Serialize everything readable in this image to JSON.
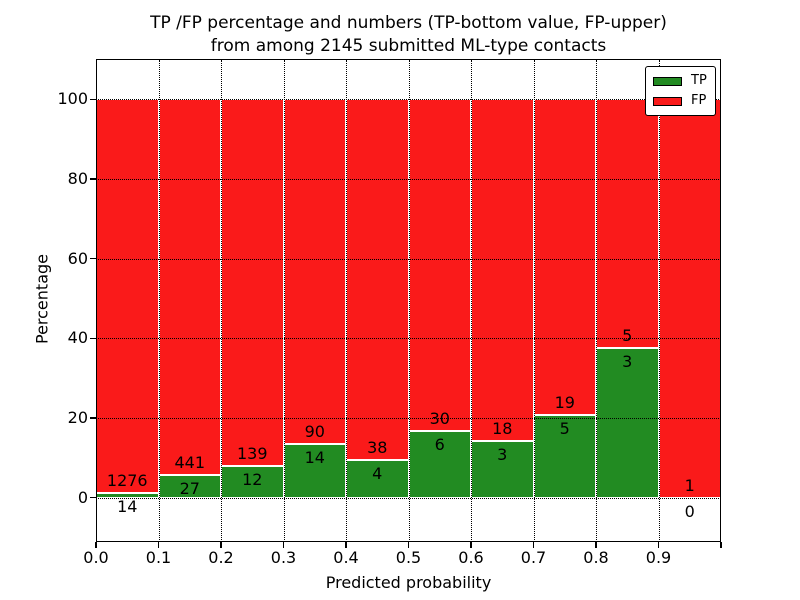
{
  "chart_data": {
    "type": "bar",
    "stacked": true,
    "title": "TP /FP percentage and numbers (TP-bottom value, FP-upper) from among 2145 submitted ML-type contacts",
    "title_line1": "TP /FP percentage and numbers (TP-bottom value, FP-upper)",
    "title_line2": "from among 2145 submitted ML-type contacts",
    "xlabel": "Predicted probability",
    "ylabel": "Percentage",
    "total_contacts": 2145,
    "xlim": [
      0.0,
      1.0
    ],
    "ylim": [
      -11,
      110
    ],
    "yticks": [
      0,
      20,
      40,
      60,
      80,
      100
    ],
    "xtick_labels": [
      "0.0",
      "0.1",
      "0.2",
      "0.3",
      "0.4",
      "0.5",
      "0.6",
      "0.7",
      "0.8",
      "0.9"
    ],
    "grid": true,
    "legend_position": "upper right",
    "series": [
      {
        "name": "TP",
        "color": "#228b22"
      },
      {
        "name": "FP",
        "color": "#fa1a1a"
      }
    ],
    "bins": [
      {
        "range": [
          0.0,
          0.1
        ],
        "tp": 14,
        "fp": 1276,
        "tp_pct": 1.09,
        "fp_pct": 98.91
      },
      {
        "range": [
          0.1,
          0.2
        ],
        "tp": 27,
        "fp": 441,
        "tp_pct": 5.77,
        "fp_pct": 94.23
      },
      {
        "range": [
          0.2,
          0.3
        ],
        "tp": 12,
        "fp": 139,
        "tp_pct": 7.95,
        "fp_pct": 92.05
      },
      {
        "range": [
          0.3,
          0.4
        ],
        "tp": 14,
        "fp": 90,
        "tp_pct": 13.46,
        "fp_pct": 86.54
      },
      {
        "range": [
          0.4,
          0.5
        ],
        "tp": 4,
        "fp": 38,
        "tp_pct": 9.52,
        "fp_pct": 90.48
      },
      {
        "range": [
          0.5,
          0.6
        ],
        "tp": 6,
        "fp": 30,
        "tp_pct": 16.67,
        "fp_pct": 83.33
      },
      {
        "range": [
          0.6,
          0.7
        ],
        "tp": 3,
        "fp": 18,
        "tp_pct": 14.29,
        "fp_pct": 85.71
      },
      {
        "range": [
          0.7,
          0.8
        ],
        "tp": 5,
        "fp": 19,
        "tp_pct": 20.83,
        "fp_pct": 79.17
      },
      {
        "range": [
          0.8,
          0.9
        ],
        "tp": 3,
        "fp": 5,
        "tp_pct": 37.5,
        "fp_pct": 62.5
      },
      {
        "range": [
          0.9,
          1.0
        ],
        "tp": 0,
        "fp": 1,
        "tp_pct": 0.0,
        "fp_pct": 100.0
      }
    ]
  }
}
